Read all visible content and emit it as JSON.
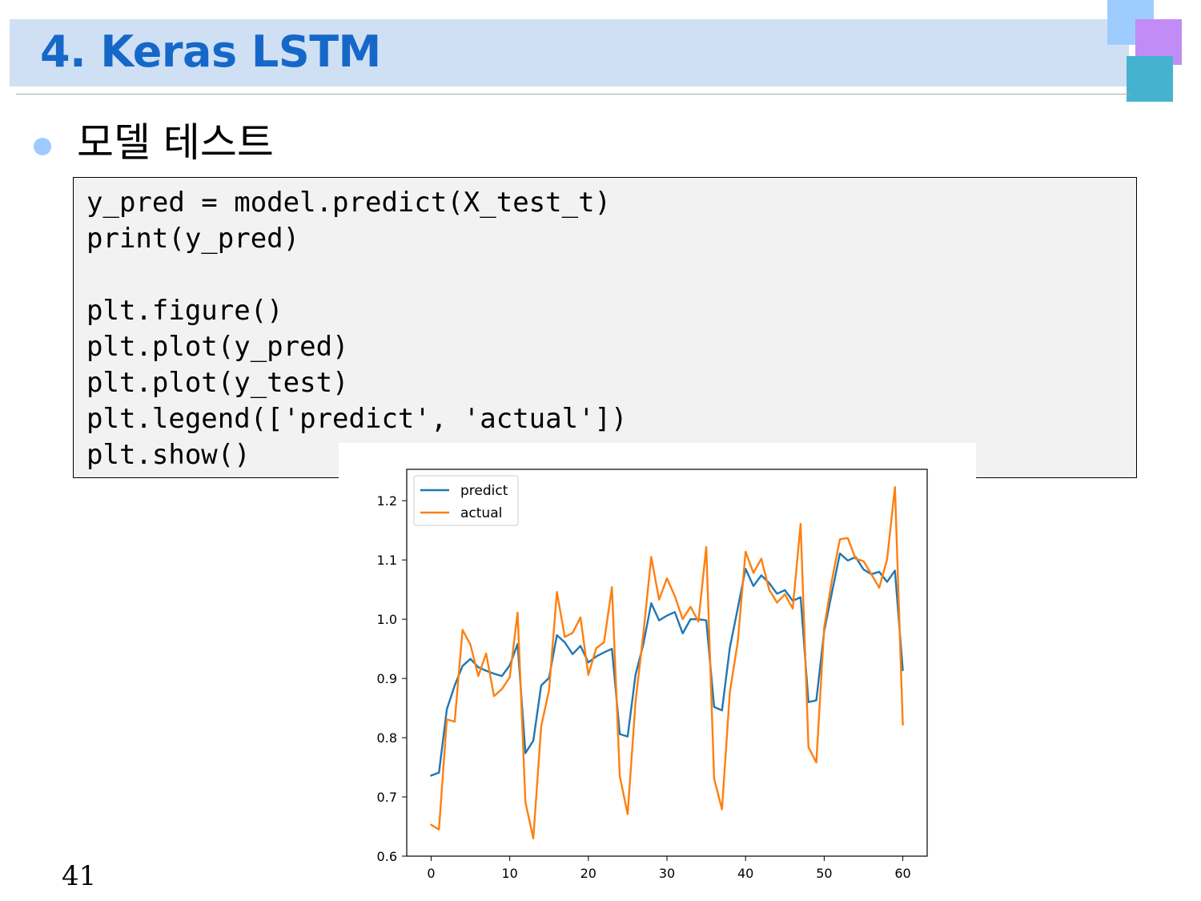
{
  "slide": {
    "title": "4. Keras LSTM",
    "bullet": "모델 테스트",
    "page_number": "41",
    "colors": {
      "title_bar": "#cfe0f5",
      "title_text": "#1668c8",
      "bullet": "#9ecbff"
    }
  },
  "code": {
    "lines": [
      "y_pred = model.predict(X_test_t)",
      "print(y_pred)",
      "",
      "plt.figure()",
      "plt.plot(y_pred)",
      "plt.plot(y_test)",
      "plt.legend(['predict', 'actual'])",
      "plt.show()"
    ]
  },
  "chart_data": {
    "type": "line",
    "title": "",
    "xlabel": "",
    "ylabel": "",
    "xlim": [
      -3.1,
      63.1
    ],
    "ylim": [
      0.6,
      1.253
    ],
    "x_ticks": [
      0,
      10,
      20,
      30,
      40,
      50,
      60
    ],
    "y_ticks": [
      0.6,
      0.7,
      0.8,
      0.9,
      1.0,
      1.1,
      1.2
    ],
    "x_tick_labels": [
      "0",
      "10",
      "20",
      "30",
      "40",
      "50",
      "60"
    ],
    "y_tick_labels": [
      "0.6",
      "0.7",
      "0.8",
      "0.9",
      "1.0",
      "1.1",
      "1.2"
    ],
    "grid": false,
    "legend_position": "top-left",
    "series": [
      {
        "name": "predict",
        "color": "#1f77b4",
        "values": [
          0.736,
          0.741,
          0.848,
          0.888,
          0.921,
          0.933,
          0.919,
          0.913,
          0.908,
          0.904,
          0.922,
          0.958,
          0.774,
          0.795,
          0.888,
          0.901,
          0.973,
          0.961,
          0.941,
          0.955,
          0.927,
          0.937,
          0.944,
          0.95,
          0.806,
          0.802,
          0.906,
          0.958,
          1.027,
          0.998,
          1.006,
          1.012,
          0.976,
          1.0,
          1.0,
          0.998,
          0.852,
          0.846,
          0.952,
          1.018,
          1.085,
          1.056,
          1.074,
          1.061,
          1.043,
          1.049,
          1.031,
          1.037,
          0.86,
          0.863,
          0.98,
          1.046,
          1.111,
          1.099,
          1.105,
          1.084,
          1.076,
          1.08,
          1.063,
          1.082,
          0.914
        ]
      },
      {
        "name": "actual",
        "color": "#ff7f0e",
        "values": [
          0.653,
          0.645,
          0.831,
          0.827,
          0.982,
          0.957,
          0.904,
          0.942,
          0.87,
          0.882,
          0.902,
          1.011,
          0.691,
          0.63,
          0.819,
          0.88,
          1.046,
          0.97,
          0.977,
          1.003,
          0.906,
          0.951,
          0.961,
          1.054,
          0.735,
          0.671,
          0.86,
          0.976,
          1.105,
          1.033,
          1.069,
          1.039,
          1.0,
          1.021,
          0.996,
          1.122,
          0.731,
          0.679,
          0.877,
          0.961,
          1.114,
          1.078,
          1.102,
          1.05,
          1.028,
          1.042,
          1.018,
          1.161,
          0.784,
          0.758,
          0.986,
          1.067,
          1.135,
          1.137,
          1.102,
          1.098,
          1.076,
          1.053,
          1.101,
          1.223,
          0.822
        ]
      }
    ]
  }
}
